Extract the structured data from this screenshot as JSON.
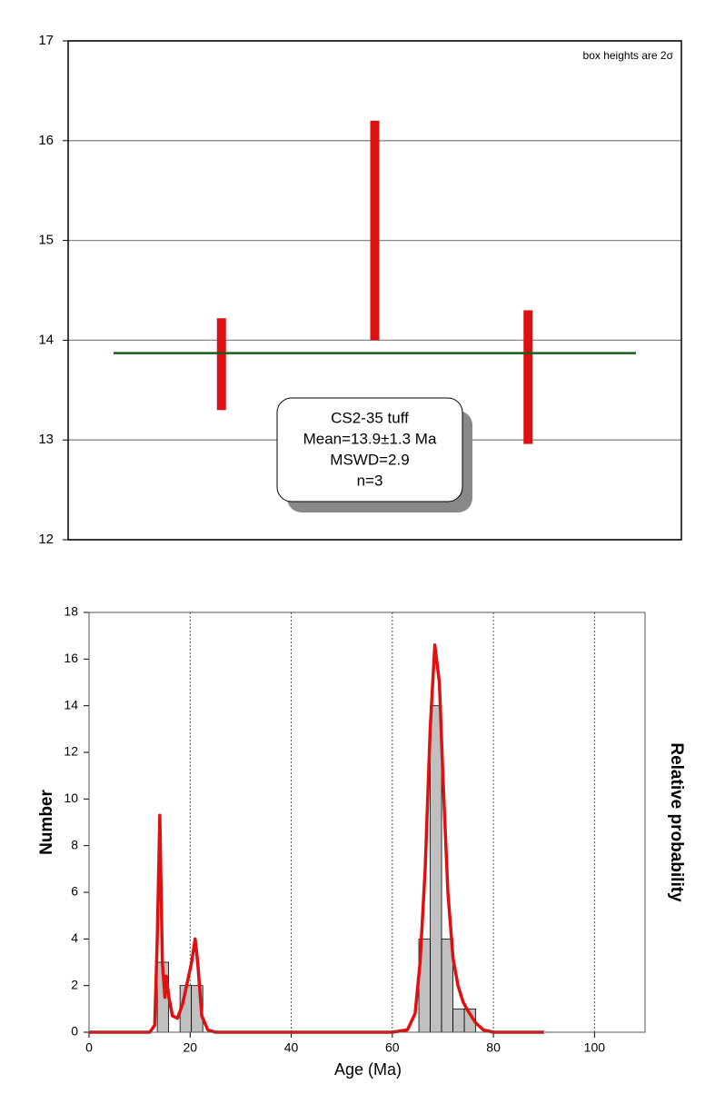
{
  "chart_data": [
    {
      "type": "errorbox",
      "note": "box heights are 2σ",
      "annotation": [
        "CS2-35 tuff",
        "Mean=13.9±1.3 Ma",
        "MSWD=2.9",
        "n=3"
      ],
      "values": [
        13.76,
        15.1,
        13.63
      ],
      "errors": [
        0.46,
        1.1,
        0.67
      ],
      "color": "#dd1111",
      "mean": 13.87,
      "mean_color": "#1a5c1a",
      "ylim": [
        12,
        17
      ],
      "yticks": [
        12,
        13,
        14,
        15,
        16,
        17
      ],
      "grid": true
    },
    {
      "type": "histogram",
      "xlabel": "Age (Ma)",
      "ylabel": "Number",
      "y2label": "Relative probability",
      "bins": [
        13.5,
        15.75,
        18,
        20.25,
        22.5,
        24.75,
        27,
        29.25,
        31.5,
        33.75,
        36,
        38.25,
        40.5,
        42.75,
        45,
        47.25,
        49.5,
        51.75,
        54,
        56.25,
        58.5,
        60.75,
        63,
        65.25,
        67.5,
        69.75,
        72,
        74.25,
        76.5
      ],
      "values": [
        3,
        0,
        2,
        2,
        0,
        0,
        0,
        0,
        0,
        0,
        0,
        0,
        0,
        0,
        0,
        0,
        0,
        0,
        0,
        0,
        0,
        0,
        0,
        4,
        14,
        4,
        1,
        1
      ],
      "color": "#c0c0c0",
      "curve": {
        "color": "#e01010",
        "x": [
          0,
          12,
          13,
          13.5,
          14,
          14.5,
          15,
          15.3,
          15.8,
          16.5,
          17.5,
          18.5,
          19.5,
          20.3,
          21,
          21.5,
          22.3,
          23.5,
          25,
          60,
          63,
          64.5,
          65.5,
          66.5,
          67.5,
          68.4,
          69.3,
          70,
          71,
          72,
          73,
          74,
          75,
          76.5,
          78,
          80,
          90
        ],
        "values": [
          0,
          0,
          0.3,
          4,
          9.3,
          3,
          1.5,
          2.4,
          1.5,
          0.7,
          0.6,
          1.2,
          2.2,
          3,
          4,
          3,
          0.7,
          0.1,
          0,
          0,
          0.1,
          0.8,
          3,
          7,
          13,
          16.6,
          15,
          11,
          6,
          3.2,
          2,
          1.3,
          0.9,
          0.4,
          0.1,
          0,
          0
        ]
      },
      "xlim": [
        0,
        110
      ],
      "xticks": [
        0,
        20,
        40,
        60,
        80,
        100
      ],
      "ylim": [
        0,
        18
      ],
      "yticks": [
        0,
        2,
        4,
        6,
        8,
        10,
        12,
        14,
        16,
        18
      ],
      "grid": true
    }
  ]
}
